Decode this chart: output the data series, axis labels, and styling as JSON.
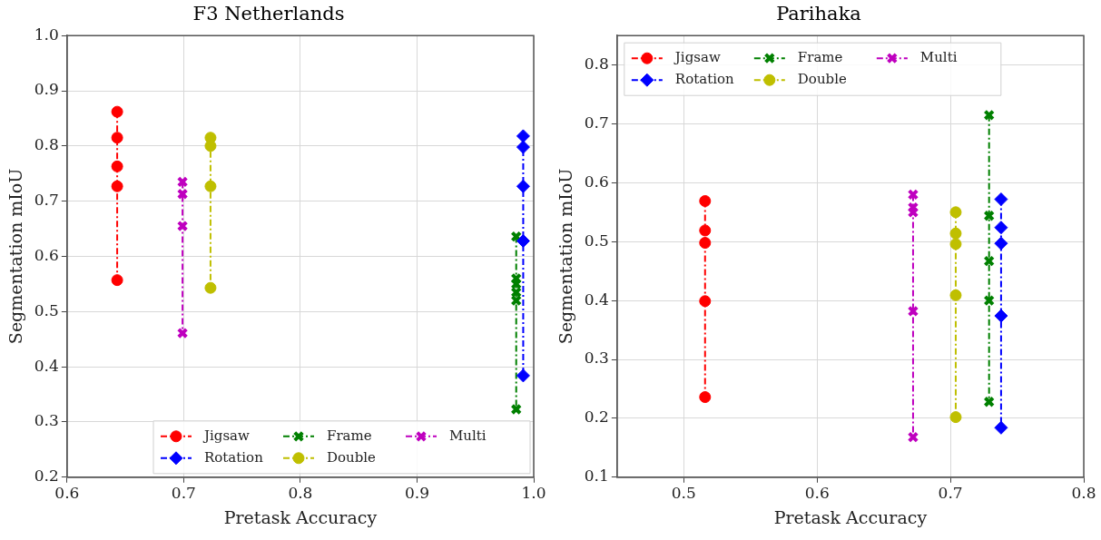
{
  "chart_data": [
    {
      "type": "line",
      "title": "F3 Netherlands",
      "xlabel": "Pretask Accuracy",
      "ylabel": "Segmentation mIoU",
      "xlim": [
        0.6,
        1.0
      ],
      "xticks": [
        0.6,
        0.7,
        0.8,
        0.9,
        {
          "value": 1.0,
          "label": "1.0"
        }
      ],
      "ylim": [
        0.2,
        1.0
      ],
      "yticks": [
        0.2,
        0.3,
        0.4,
        0.5,
        0.6,
        0.7,
        0.8,
        0.9,
        {
          "value": 1.0,
          "label": "1.0"
        }
      ],
      "grid": true,
      "legend": "bottom right",
      "line_style": "dashed",
      "series": [
        {
          "name": "Jigsaw",
          "color": "#ff0000",
          "marker": "circle",
          "x": [
            0.643,
            0.643,
            0.643,
            0.643,
            0.643
          ],
          "values": [
            0.862,
            0.815,
            0.763,
            0.727,
            0.557
          ]
        },
        {
          "name": "Rotation",
          "color": "#0000ff",
          "marker": "diamond",
          "x": [
            0.991,
            0.991,
            0.991,
            0.991,
            0.991
          ],
          "values": [
            0.818,
            0.798,
            0.727,
            0.628,
            0.384
          ]
        },
        {
          "name": "Frame",
          "color": "#008000",
          "marker": "cross",
          "x": [
            0.985,
            0.985,
            0.985,
            0.985,
            0.985,
            0.985
          ],
          "values": [
            0.636,
            0.56,
            0.55,
            0.535,
            0.52,
            0.323
          ]
        },
        {
          "name": "Double",
          "color": "#bfbf00",
          "marker": "circle",
          "x": [
            0.723,
            0.723,
            0.723,
            0.723
          ],
          "values": [
            0.815,
            0.8,
            0.727,
            0.543
          ]
        },
        {
          "name": "Multi",
          "color": "#bf00bf",
          "marker": "cross",
          "x": [
            0.699,
            0.699,
            0.699,
            0.699
          ],
          "values": [
            0.735,
            0.713,
            0.655,
            0.461
          ]
        }
      ]
    },
    {
      "type": "line",
      "title": "Parihaka",
      "xlabel": "Pretask Accuracy",
      "ylabel": "Segmentation mIoU",
      "xlim": [
        0.45,
        0.8
      ],
      "xticks": [
        0.5,
        0.6,
        0.7,
        0.8
      ],
      "ylim": [
        0.1,
        0.85
      ],
      "yticks": [
        0.1,
        0.2,
        0.3,
        0.4,
        0.5,
        0.6,
        0.7,
        0.8
      ],
      "grid": true,
      "legend": "top left",
      "line_style": "dashed",
      "series": [
        {
          "name": "Jigsaw",
          "color": "#ff0000",
          "marker": "circle",
          "x": [
            0.516,
            0.516,
            0.516,
            0.516,
            0.516
          ],
          "values": [
            0.569,
            0.519,
            0.498,
            0.399,
            0.236
          ]
        },
        {
          "name": "Rotation",
          "color": "#0000ff",
          "marker": "diamond",
          "x": [
            0.738,
            0.738,
            0.738,
            0.738,
            0.738
          ],
          "values": [
            0.572,
            0.524,
            0.497,
            0.374,
            0.184
          ]
        },
        {
          "name": "Frame",
          "color": "#008000",
          "marker": "cross",
          "x": [
            0.729,
            0.729,
            0.729,
            0.729,
            0.729
          ],
          "values": [
            0.715,
            0.544,
            0.467,
            0.4,
            0.228
          ]
        },
        {
          "name": "Double",
          "color": "#bfbf00",
          "marker": "circle",
          "x": [
            0.704,
            0.704,
            0.704,
            0.704,
            0.704
          ],
          "values": [
            0.55,
            0.514,
            0.496,
            0.409,
            0.202
          ]
        },
        {
          "name": "Multi",
          "color": "#bf00bf",
          "marker": "cross",
          "x": [
            0.672,
            0.672,
            0.672,
            0.672,
            0.672
          ],
          "values": [
            0.58,
            0.558,
            0.55,
            0.382,
            0.168
          ]
        }
      ]
    }
  ]
}
